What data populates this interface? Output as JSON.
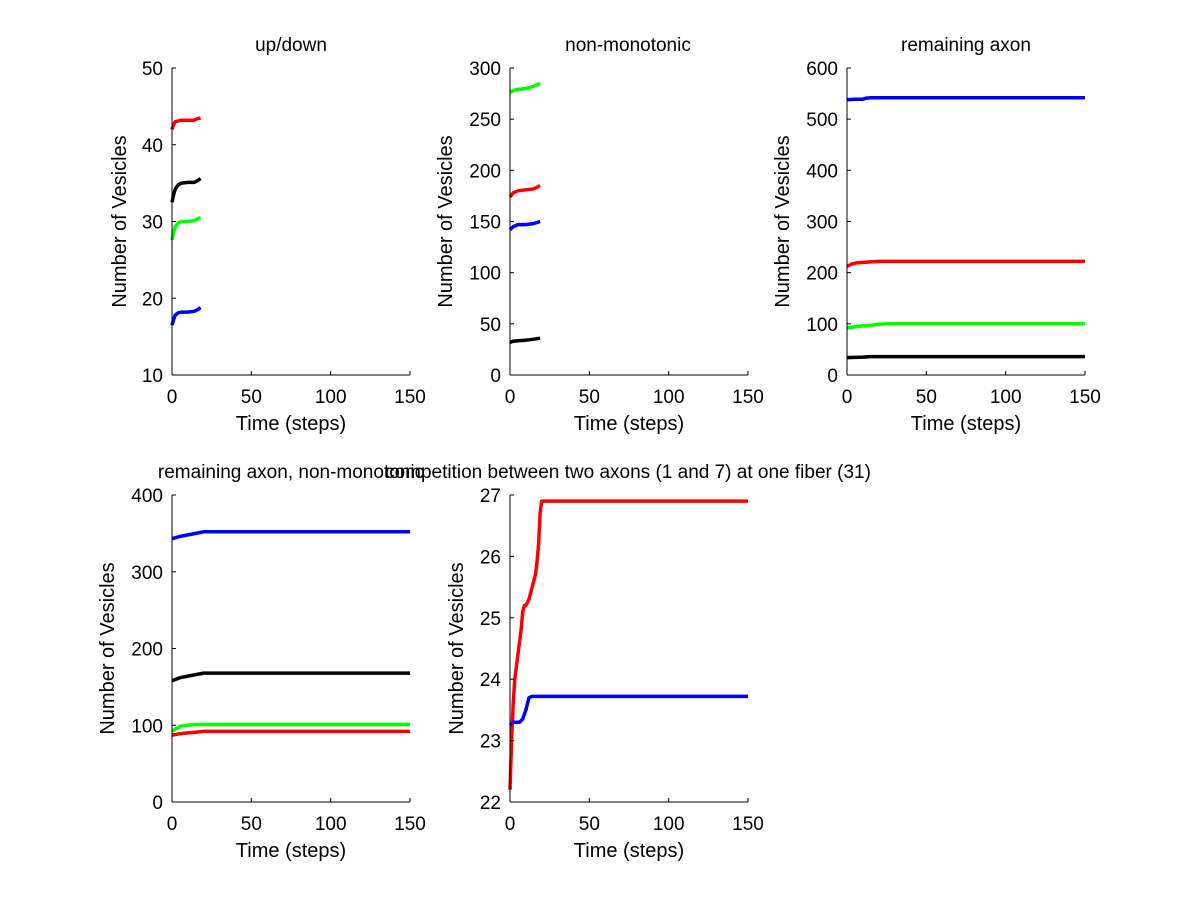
{
  "chart_data": [
    {
      "type": "line",
      "title": "up/down",
      "xlabel": "Time (steps)",
      "ylabel": "Number of Vesicles",
      "xlim": [
        0,
        150
      ],
      "ylim": [
        10,
        50
      ],
      "xticks": [
        0,
        50,
        100,
        150
      ],
      "yticks": [
        10,
        20,
        30,
        40,
        50
      ],
      "xtick_labels": [
        "0",
        "50",
        "100",
        "150"
      ],
      "ytick_labels": [
        "10",
        "20",
        "30",
        "40",
        "50"
      ],
      "grid": false,
      "series": [
        {
          "name": "red",
          "color": "#ff0000",
          "x": [
            0,
            1,
            2,
            4,
            6,
            10,
            14,
            16,
            18
          ],
          "y": [
            42,
            42.6,
            43,
            43.1,
            43.2,
            43.2,
            43.2,
            43.4,
            43.5
          ]
        },
        {
          "name": "black",
          "color": "#000000",
          "x": [
            0,
            1,
            2,
            4,
            6,
            10,
            14,
            16,
            18
          ],
          "y": [
            32.5,
            33.5,
            34.2,
            34.8,
            35,
            35.1,
            35.1,
            35.3,
            35.6
          ]
        },
        {
          "name": "green",
          "color": "#00ff00",
          "x": [
            0,
            1,
            2,
            4,
            6,
            10,
            14,
            16,
            18
          ],
          "y": [
            27.6,
            28.6,
            29.3,
            29.8,
            30,
            30,
            30.1,
            30.3,
            30.5
          ]
        },
        {
          "name": "blue",
          "color": "#0000ff",
          "x": [
            0,
            1,
            2,
            4,
            6,
            10,
            14,
            16,
            18
          ],
          "y": [
            16.5,
            17.2,
            17.8,
            18.1,
            18.2,
            18.2,
            18.3,
            18.5,
            18.8
          ]
        }
      ]
    },
    {
      "type": "line",
      "title": "non-monotonic",
      "xlabel": "Time (steps)",
      "ylabel": "Number of Vesicles",
      "xlim": [
        0,
        150
      ],
      "ylim": [
        0,
        300
      ],
      "xticks": [
        0,
        50,
        100,
        150
      ],
      "yticks": [
        0,
        50,
        100,
        150,
        200,
        250,
        300
      ],
      "xtick_labels": [
        "0",
        "50",
        "100",
        "150"
      ],
      "ytick_labels": [
        "0",
        "50",
        "100",
        "150",
        "200",
        "250",
        "300"
      ],
      "grid": false,
      "series": [
        {
          "name": "green",
          "color": "#00ff00",
          "x": [
            0,
            2,
            5,
            10,
            15,
            19
          ],
          "y": [
            276,
            278,
            279,
            280,
            282,
            285
          ]
        },
        {
          "name": "red",
          "color": "#ff0000",
          "x": [
            0,
            2,
            5,
            10,
            15,
            19
          ],
          "y": [
            174,
            178,
            180,
            181,
            182,
            185
          ]
        },
        {
          "name": "blue",
          "color": "#0000ff",
          "x": [
            0,
            2,
            5,
            10,
            15,
            19
          ],
          "y": [
            142,
            145,
            147,
            147,
            148,
            150
          ]
        },
        {
          "name": "black",
          "color": "#000000",
          "x": [
            0,
            2,
            5,
            10,
            15,
            19
          ],
          "y": [
            32,
            33,
            33.5,
            34,
            35,
            36
          ]
        }
      ]
    },
    {
      "type": "line",
      "title": "remaining axon",
      "xlabel": "Time (steps)",
      "ylabel": "Number of Vesicles",
      "xlim": [
        0,
        150
      ],
      "ylim": [
        0,
        600
      ],
      "xticks": [
        0,
        50,
        100,
        150
      ],
      "yticks": [
        0,
        100,
        200,
        300,
        400,
        500,
        600
      ],
      "xtick_labels": [
        "0",
        "50",
        "100",
        "150"
      ],
      "ytick_labels": [
        "0",
        "100",
        "200",
        "300",
        "400",
        "500",
        "600"
      ],
      "grid": false,
      "series": [
        {
          "name": "blue",
          "color": "#0000ff",
          "x": [
            0,
            5,
            10,
            12,
            15,
            150
          ],
          "y": [
            538,
            539,
            539,
            541,
            542,
            542
          ]
        },
        {
          "name": "red",
          "color": "#ff0000",
          "x": [
            0,
            3,
            6,
            10,
            15,
            20,
            150
          ],
          "y": [
            212,
            217,
            219,
            220,
            221,
            222,
            222
          ]
        },
        {
          "name": "green",
          "color": "#00ff00",
          "x": [
            0,
            5,
            10,
            15,
            20,
            25,
            150
          ],
          "y": [
            92,
            94,
            96,
            97,
            99,
            100,
            100
          ]
        },
        {
          "name": "black",
          "color": "#000000",
          "x": [
            0,
            10,
            15,
            150
          ],
          "y": [
            34,
            35,
            36,
            36
          ]
        }
      ]
    },
    {
      "type": "line",
      "title": "remaining axon, non-monotonic",
      "xlabel": "Time (steps)",
      "ylabel": "Number of Vesicles",
      "xlim": [
        0,
        150
      ],
      "ylim": [
        0,
        400
      ],
      "xticks": [
        0,
        50,
        100,
        150
      ],
      "yticks": [
        0,
        100,
        200,
        300,
        400
      ],
      "xtick_labels": [
        "0",
        "50",
        "100",
        "150"
      ],
      "ytick_labels": [
        "0",
        "100",
        "200",
        "300",
        "400"
      ],
      "grid": false,
      "series": [
        {
          "name": "blue",
          "color": "#0000ff",
          "x": [
            0,
            5,
            10,
            15,
            20,
            150
          ],
          "y": [
            343,
            346,
            348,
            350,
            352,
            352
          ]
        },
        {
          "name": "black",
          "color": "#000000",
          "x": [
            0,
            5,
            10,
            15,
            20,
            150
          ],
          "y": [
            158,
            162,
            164,
            166,
            168,
            168
          ]
        },
        {
          "name": "green",
          "color": "#00ff00",
          "x": [
            0,
            3,
            6,
            10,
            15,
            150
          ],
          "y": [
            92,
            96,
            99,
            100,
            101,
            101
          ]
        },
        {
          "name": "red",
          "color": "#ff0000",
          "x": [
            0,
            5,
            10,
            15,
            20,
            150
          ],
          "y": [
            87,
            89,
            90,
            91,
            92,
            92
          ]
        }
      ]
    },
    {
      "type": "line",
      "title": "competition between two axons (1 and 7) at one fiber (31)",
      "xlabel": "Time (steps)",
      "ylabel": "Number of Vesicles",
      "xlim": [
        0,
        150
      ],
      "ylim": [
        22,
        27
      ],
      "xticks": [
        0,
        50,
        100,
        150
      ],
      "yticks": [
        22,
        23,
        24,
        25,
        26,
        27
      ],
      "xtick_labels": [
        "0",
        "50",
        "100",
        "150"
      ],
      "ytick_labels": [
        "22",
        "23",
        "24",
        "25",
        "26",
        "27"
      ],
      "grid": false,
      "series": [
        {
          "name": "red",
          "color": "#ff0000",
          "x": [
            0,
            1,
            2,
            3,
            5,
            7,
            8,
            9,
            10,
            12,
            14,
            16,
            17,
            18,
            19,
            20,
            150
          ],
          "y": [
            22.2,
            23,
            23.6,
            24,
            24.4,
            24.8,
            25.1,
            25.2,
            25.2,
            25.3,
            25.5,
            25.7,
            25.9,
            26.2,
            26.7,
            26.9,
            26.9
          ]
        },
        {
          "name": "blue",
          "color": "#0000ff",
          "x": [
            0,
            2,
            6,
            8,
            10,
            12,
            14,
            150
          ],
          "y": [
            23.25,
            23.3,
            23.3,
            23.35,
            23.5,
            23.7,
            23.72,
            23.72
          ]
        }
      ]
    }
  ]
}
